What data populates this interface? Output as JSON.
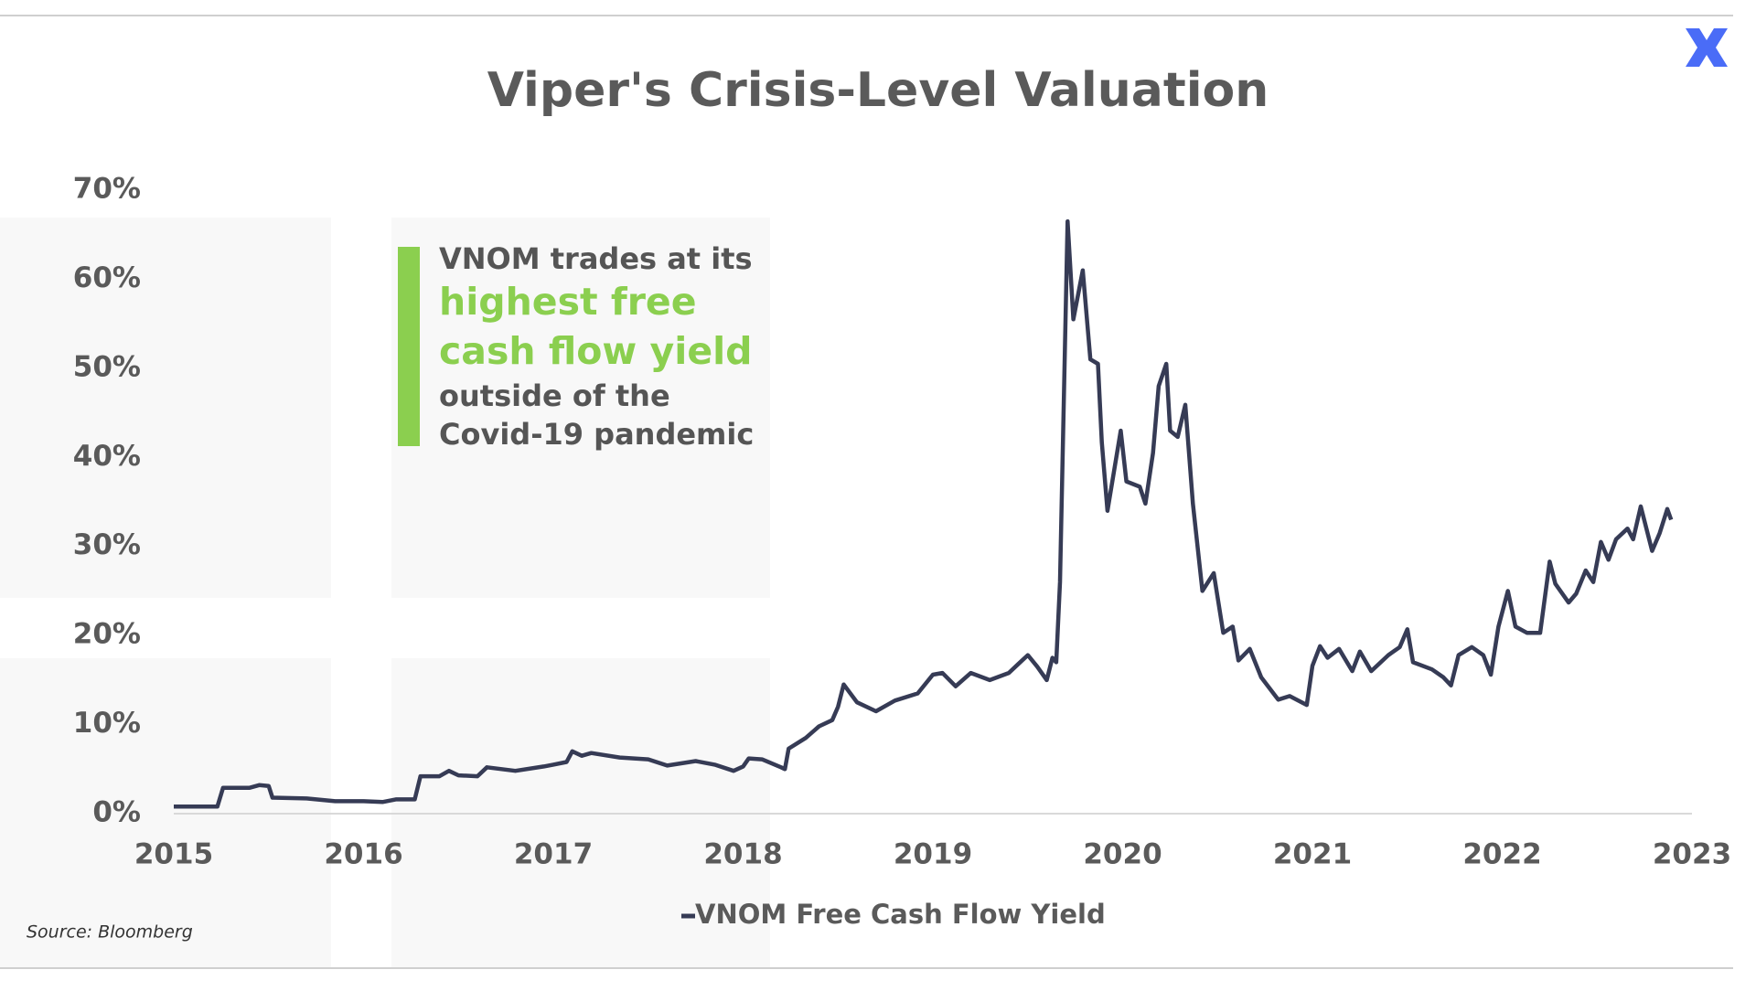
{
  "chart_data": {
    "type": "line",
    "title": "Viper's Crisis-Level Valuation",
    "source": "Source: Bloomberg",
    "annotation": {
      "lines": [
        "VNOM trades at its",
        "outside of the",
        "Covid-19 pandemic"
      ],
      "highlight": [
        "highest free",
        "cash flow yield"
      ]
    },
    "x": [
      2015.0,
      2015.23,
      2015.26,
      2015.4,
      2015.45,
      2015.5,
      2015.52,
      2015.7,
      2015.85,
      2016.0,
      2016.1,
      2016.17,
      2016.27,
      2016.3,
      2016.4,
      2016.45,
      2016.5,
      2016.6,
      2016.65,
      2016.8,
      2016.95,
      2017.0,
      2017.07,
      2017.1,
      2017.15,
      2017.2,
      2017.35,
      2017.5,
      2017.6,
      2017.75,
      2017.85,
      2017.95,
      2018.0,
      2018.03,
      2018.1,
      2018.2,
      2018.22,
      2018.24,
      2018.33,
      2018.4,
      2018.47,
      2018.5,
      2018.53,
      2018.6,
      2018.7,
      2018.8,
      2018.92,
      2019.0,
      2019.05,
      2019.12,
      2019.2,
      2019.3,
      2019.4,
      2019.45,
      2019.5,
      2019.55,
      2019.6,
      2019.63,
      2019.65,
      2019.67,
      2019.71,
      2019.74,
      2019.79,
      2019.83,
      2019.87,
      2019.89,
      2019.92,
      2019.99,
      2020.02,
      2020.09,
      2020.12,
      2020.16,
      2020.19,
      2020.23,
      2020.25,
      2020.29,
      2020.33,
      2020.37,
      2020.42,
      2020.48,
      2020.53,
      2020.58,
      2020.61,
      2020.67,
      2020.73,
      2020.82,
      2020.88,
      2020.97,
      2021.0,
      2021.04,
      2021.08,
      2021.14,
      2021.21,
      2021.25,
      2021.31,
      2021.4,
      2021.46,
      2021.5,
      2021.53,
      2021.63,
      2021.69,
      2021.73,
      2021.77,
      2021.84,
      2021.9,
      2021.94,
      2021.98,
      2022.03,
      2022.07,
      2022.13,
      2022.2,
      2022.25,
      2022.28,
      2022.35,
      2022.39,
      2022.44,
      2022.48,
      2022.52,
      2022.56,
      2022.6,
      2022.66,
      2022.69,
      2022.73,
      2022.79,
      2022.83,
      2022.87,
      2022.89
    ],
    "series": [
      {
        "name": "VNOM Free Cash Flow Yield",
        "color": "#363b55",
        "values": [
          0.8,
          0.8,
          2.9,
          2.9,
          3.2,
          3.1,
          1.8,
          1.7,
          1.4,
          1.4,
          1.3,
          1.6,
          1.6,
          4.2,
          4.2,
          4.8,
          4.3,
          4.2,
          5.2,
          4.8,
          5.3,
          5.5,
          5.8,
          7.0,
          6.5,
          6.8,
          6.3,
          6.1,
          5.4,
          5.9,
          5.5,
          4.8,
          5.3,
          6.2,
          6.1,
          5.2,
          5.0,
          7.3,
          8.5,
          9.8,
          10.5,
          12.0,
          14.5,
          12.5,
          11.5,
          12.7,
          13.5,
          15.6,
          15.8,
          14.3,
          15.8,
          15.0,
          15.8,
          16.8,
          17.8,
          16.5,
          15.0,
          17.5,
          17.0,
          26.0,
          66.5,
          55.5,
          61.0,
          51.0,
          50.5,
          41.7,
          34.0,
          43.0,
          37.3,
          36.7,
          34.8,
          40.5,
          48.0,
          50.5,
          43.0,
          42.3,
          45.9,
          34.8,
          25.0,
          27.0,
          20.3,
          21.0,
          17.2,
          18.5,
          15.3,
          12.8,
          13.2,
          12.2,
          16.6,
          18.8,
          17.5,
          18.5,
          16.0,
          18.2,
          16.0,
          17.8,
          18.7,
          20.7,
          17.0,
          16.2,
          15.3,
          14.4,
          17.8,
          18.7,
          17.8,
          15.6,
          21.0,
          25.0,
          21.0,
          20.3,
          20.3,
          28.3,
          25.8,
          23.7,
          24.7,
          27.3,
          26.0,
          30.5,
          28.5,
          30.8,
          32.0,
          30.8,
          34.5,
          29.5,
          31.5,
          34.2,
          33.0
        ]
      }
    ],
    "xlim": [
      2015,
      2023
    ],
    "xticks": [
      2015,
      2016,
      2017,
      2018,
      2019,
      2020,
      2021,
      2022,
      2023
    ],
    "ylim": [
      0,
      70
    ],
    "yticks": [
      {
        "value": 0,
        "label": "0%"
      },
      {
        "value": 10,
        "label": "10%"
      },
      {
        "value": 20,
        "label": "20%"
      },
      {
        "value": 30,
        "label": "30%"
      },
      {
        "value": 40,
        "label": "40%"
      },
      {
        "value": 50,
        "label": "50%"
      },
      {
        "value": 60,
        "label": "60%"
      },
      {
        "value": 70,
        "label": "70%"
      }
    ],
    "grid": false
  }
}
